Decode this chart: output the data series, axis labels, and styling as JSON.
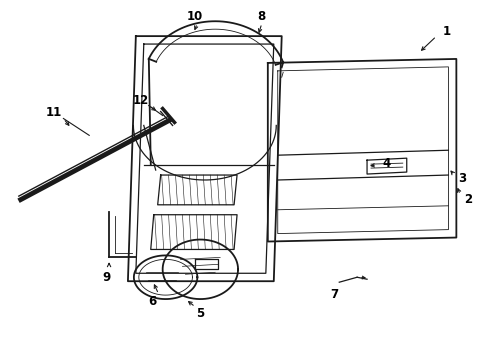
{
  "bg_color": "#ffffff",
  "line_color": "#1a1a1a",
  "label_color": "#000000",
  "lw_main": 1.3,
  "lw_med": 0.9,
  "lw_thin": 0.6,
  "label_fs": 8.5
}
